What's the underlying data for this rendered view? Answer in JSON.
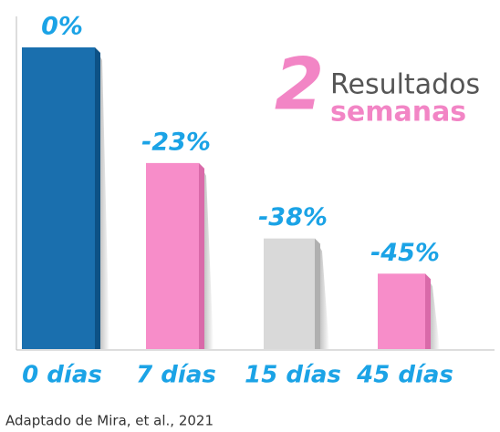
{
  "chart_data": {
    "type": "bar",
    "title_number": "2",
    "title_line1": "Resultados",
    "title_line2": "semanas",
    "categories": [
      "0 días",
      "7 días",
      "15 días",
      "45 días"
    ],
    "values": [
      0,
      -23,
      -38,
      -45
    ],
    "value_labels": [
      "0%",
      "-23%",
      "-38%",
      "-45%"
    ],
    "colors": [
      "#1a6fae",
      "#f78dc9",
      "#d9d9d9",
      "#f78dc9"
    ],
    "ylim": [
      -60,
      0
    ],
    "source": "Adaptado de Mira, et al., 2021"
  }
}
